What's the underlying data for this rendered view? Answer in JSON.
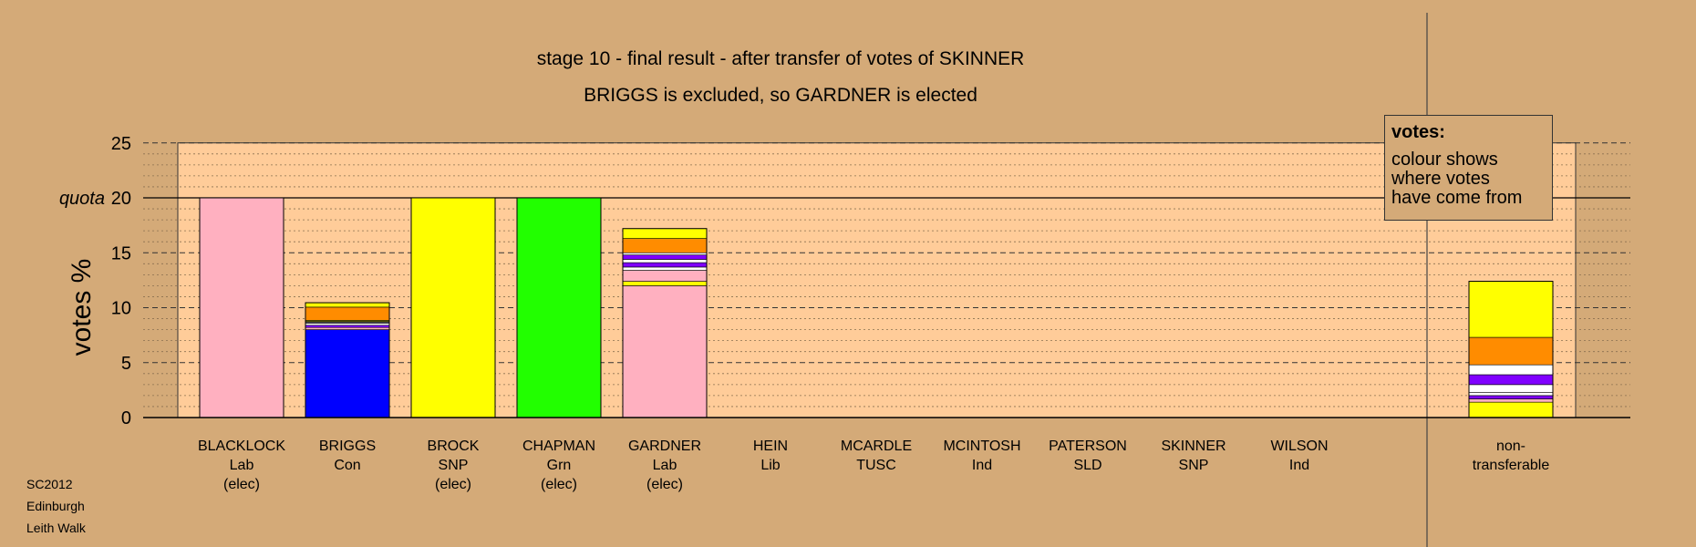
{
  "chart_data": {
    "type": "bar",
    "stacked": true,
    "title": "stage 10 - final result - after transfer of votes of SKINNER",
    "subtitle": "BRIGGS is excluded, so GARDNER is elected",
    "ylabel": "votes %",
    "ylim": [
      0,
      25
    ],
    "yticks": [
      "0",
      "5",
      "10",
      "15",
      "quota",
      "20",
      "25"
    ],
    "quota_label": "quota",
    "quota": 20,
    "grid": true,
    "categories": [
      {
        "name": "BLACKLOCK",
        "party": "Lab",
        "status": "(elec)"
      },
      {
        "name": "BRIGGS",
        "party": "Con",
        "status": ""
      },
      {
        "name": "BROCK",
        "party": "SNP",
        "status": "(elec)"
      },
      {
        "name": "CHAPMAN",
        "party": "Grn",
        "status": "(elec)"
      },
      {
        "name": "GARDNER",
        "party": "Lab",
        "status": "(elec)"
      },
      {
        "name": "HEIN",
        "party": "Lib",
        "status": ""
      },
      {
        "name": "MCARDLE",
        "party": "TUSC",
        "status": ""
      },
      {
        "name": "MCINTOSH",
        "party": "Ind",
        "status": ""
      },
      {
        "name": "PATERSON",
        "party": "SLD",
        "status": ""
      },
      {
        "name": "SKINNER",
        "party": "SNP",
        "status": ""
      },
      {
        "name": "WILSON",
        "party": "Ind",
        "status": ""
      }
    ],
    "nontransferable_label": [
      "non-",
      "transferable"
    ],
    "stacks": [
      [
        {
          "value": 20.0,
          "color": "#ffb0c0"
        }
      ],
      [
        {
          "value": 8.0,
          "color": "#0000ff"
        },
        {
          "value": 0.2,
          "color": "#ffb0c0"
        },
        {
          "value": 0.2,
          "color": "#7f00ff"
        },
        {
          "value": 0.2,
          "color": "#ffffff"
        },
        {
          "value": 0.15,
          "color": "#404040"
        },
        {
          "value": 0.1,
          "color": "#ffff00"
        },
        {
          "value": 1.2,
          "color": "#ff8c00"
        },
        {
          "value": 0.4,
          "color": "#ffff00"
        }
      ],
      [
        {
          "value": 20.0,
          "color": "#ffff00"
        }
      ],
      [
        {
          "value": 20.0,
          "color": "#22ff00"
        }
      ],
      [
        {
          "value": 12.0,
          "color": "#ffb0c0"
        },
        {
          "value": 0.4,
          "color": "#ffff00"
        },
        {
          "value": 1.0,
          "color": "#ffb0c0"
        },
        {
          "value": 0.3,
          "color": "#ffffff"
        },
        {
          "value": 0.4,
          "color": "#7f00ff"
        },
        {
          "value": 0.3,
          "color": "#ffffff"
        },
        {
          "value": 0.4,
          "color": "#7f00ff"
        },
        {
          "value": 0.2,
          "color": "#ffffff"
        },
        {
          "value": 1.3,
          "color": "#ff8c00"
        },
        {
          "value": 0.9,
          "color": "#ffff00"
        }
      ],
      [],
      [],
      [],
      [],
      [],
      []
    ],
    "nontransferable": [
      {
        "value": 1.4,
        "color": "#ffff00"
      },
      {
        "value": 0.3,
        "color": "#ffb0c0"
      },
      {
        "value": 0.3,
        "color": "#7f00ff"
      },
      {
        "value": 0.3,
        "color": "#ffffff"
      },
      {
        "value": 0.7,
        "color": "#ffffff"
      },
      {
        "value": 0.9,
        "color": "#7f00ff"
      },
      {
        "value": 0.9,
        "color": "#ffffff"
      },
      {
        "value": 2.5,
        "color": "#ff8c00"
      },
      {
        "value": 5.1,
        "color": "#ffff00"
      }
    ]
  },
  "legend": {
    "title": "votes:",
    "lines": [
      "colour shows",
      "where votes",
      "have come from"
    ]
  },
  "corner_text": [
    "SC2012",
    "Edinburgh",
    "Leith Walk"
  ],
  "colors": {
    "background": "#d4aa78",
    "plot_area": "#ffcc99"
  }
}
